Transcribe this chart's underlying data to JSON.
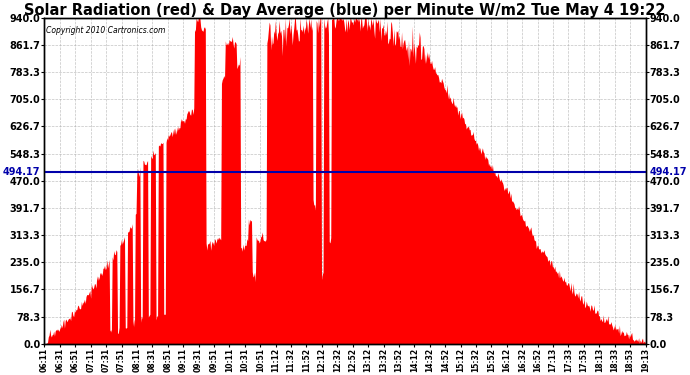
{
  "title": "Solar Radiation (red) & Day Average (blue) per Minute W/m2 Tue May 4 19:22",
  "copyright_text": "Copyright 2010 Cartronics.com",
  "avg_value": 494.17,
  "ymin": 0.0,
  "ymax": 940.0,
  "yticks": [
    0.0,
    78.3,
    156.7,
    235.0,
    313.3,
    391.7,
    470.0,
    548.3,
    626.7,
    705.0,
    783.3,
    861.7,
    940.0
  ],
  "xlabels": [
    "06:11",
    "06:31",
    "06:51",
    "07:11",
    "07:31",
    "07:51",
    "08:11",
    "08:31",
    "08:51",
    "09:11",
    "09:31",
    "09:51",
    "10:11",
    "10:31",
    "10:51",
    "11:12",
    "11:32",
    "11:52",
    "12:12",
    "12:32",
    "12:52",
    "13:12",
    "13:32",
    "13:52",
    "14:12",
    "14:32",
    "14:52",
    "15:12",
    "15:32",
    "15:52",
    "16:12",
    "16:32",
    "16:52",
    "17:13",
    "17:33",
    "17:53",
    "18:13",
    "18:33",
    "18:53",
    "19:13"
  ],
  "bar_color": "#FF0000",
  "line_color": "#0000AA",
  "background_color": "#FFFFFF",
  "title_fontsize": 10.5,
  "avg_label": "494.17"
}
